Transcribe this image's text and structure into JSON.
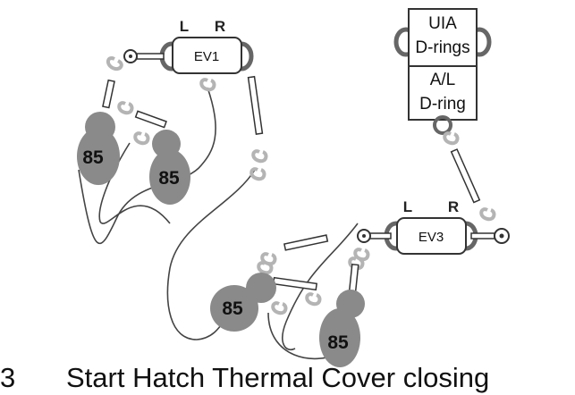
{
  "units": {
    "ev1": {
      "name": "EV1",
      "left": "L",
      "right": "R"
    },
    "ev3": {
      "name": "EV3",
      "left": "L",
      "right": "R"
    }
  },
  "dring_stack": {
    "top_line1": "UIA",
    "top_line2": "D-rings",
    "bottom_line1": "A/L",
    "bottom_line2": "D-ring"
  },
  "bags": [
    "85",
    "85",
    "85",
    "85"
  ],
  "caption": {
    "number": "3",
    "text": "Start Hatch Thermal Cover closing"
  },
  "colors": {
    "bag": "#8a8a8a",
    "hook": "#b4b4b4",
    "line": "#444444",
    "ring": "#6a6a6a"
  }
}
